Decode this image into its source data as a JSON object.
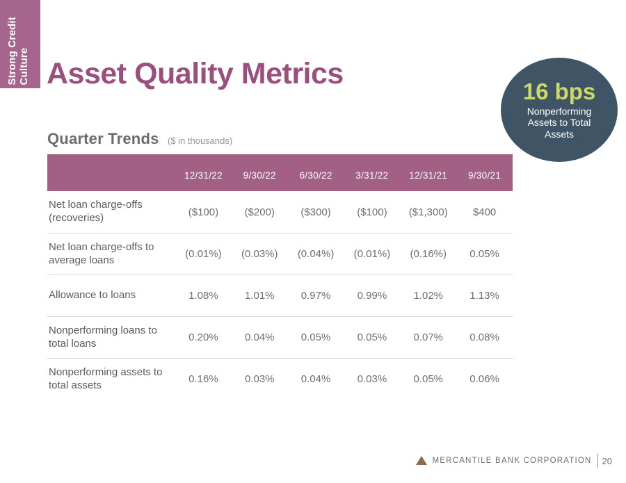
{
  "slide": {
    "ribbon": {
      "lines": [
        "Strong Credit",
        "Culture"
      ]
    },
    "title": "Asset Quality Metrics",
    "badge": {
      "value": "16 bps",
      "label": "Nonperforming Assets to Total Assets"
    },
    "section": {
      "title": "Quarter Trends",
      "subtitle": "($ in thousands)"
    },
    "table": {
      "columns": [
        "12/31/22",
        "9/30/22",
        "6/30/22",
        "3/31/22",
        "12/31/21",
        "9/30/21"
      ],
      "rows": [
        {
          "label": "Net loan charge-offs (recoveries)",
          "values": [
            "($100)",
            "($200)",
            "($300)",
            "($100)",
            "($1,300)",
            "$400"
          ]
        },
        {
          "label": "Net loan charge-offs to average loans",
          "values": [
            "(0.01%)",
            "(0.03%)",
            "(0.04%)",
            "(0.01%)",
            "(0.16%)",
            "0.05%"
          ]
        },
        {
          "label": "Allowance to loans",
          "values": [
            "1.08%",
            "1.01%",
            "0.97%",
            "0.99%",
            "1.02%",
            "1.13%"
          ]
        },
        {
          "label": "Nonperforming loans to total loans",
          "values": [
            "0.20%",
            "0.04%",
            "0.05%",
            "0.05%",
            "0.07%",
            "0.08%"
          ]
        },
        {
          "label": "Nonperforming assets to total assets",
          "values": [
            "0.16%",
            "0.03%",
            "0.04%",
            "0.03%",
            "0.05%",
            "0.06%"
          ]
        }
      ]
    },
    "footer": {
      "company": "MERCANTILE BANK CORPORATION",
      "page": "20"
    },
    "colors": {
      "mauve_header": "#a26084",
      "mauve_ribbon": "#a5658d",
      "title_purple": "#9b4f7d",
      "circle_slate": "#3f5464",
      "accent_yellow_green": "#ccd964",
      "heading_grey": "#6b6c6e",
      "body_text_grey": "#5a5b5d",
      "logo_brown": "#8f6a51"
    }
  }
}
